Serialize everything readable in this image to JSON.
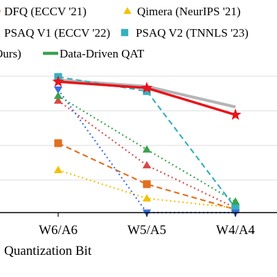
{
  "chart_data": {
    "type": "line",
    "categories": [
      "W6/A6",
      "W5/A5",
      "W4/A4"
    ],
    "xlabel": "Quantization Bit",
    "ylabel": "",
    "grid": true,
    "legend_placement": "top",
    "legend": {
      "items": [
        {
          "series_index": 0,
          "marker": "circle",
          "label": "DFQ (ECCV '21)"
        },
        {
          "series_index": 1,
          "marker": "triangle",
          "label": "Qimera (NeurIPS '21)"
        },
        {
          "series_index": 2,
          "marker": "triangle",
          "label": "PSAQ V1 (ECCV '22)"
        },
        {
          "series_index": 3,
          "marker": "square",
          "label": "PSAQ V2 (TNNLS '23)"
        },
        {
          "series_index": 4,
          "marker": "star",
          "label": "Ours)"
        },
        {
          "series_index": 5,
          "marker": "line",
          "label": "Data-Driven QAT"
        }
      ]
    },
    "series": [
      {
        "name": "DFQ (ECCV '21)",
        "color": "#e07020",
        "dash": "8,5",
        "marker": "square",
        "values": [
          44,
          18,
          2
        ]
      },
      {
        "name": "Qimera (NeurIPS '21)",
        "color": "#f2c200",
        "dash": "2,4",
        "marker": "triangle",
        "values": [
          27,
          9,
          3
        ]
      },
      {
        "name": "PSAQ V1 (ECCV '22)",
        "color": "#d84848",
        "dash": "2,4",
        "marker": "triangle",
        "values": [
          71,
          30,
          3
        ]
      },
      {
        "name": "PSAQ V2 (TNNLS '23)",
        "color": "#35b0c0",
        "dash": "8,5",
        "marker": "square",
        "values": [
          86,
          77,
          3
        ]
      },
      {
        "name": "",
        "color": "#3a6ee0",
        "dash": "2,4",
        "marker": "triangle-down",
        "values": [
          78,
          0,
          0
        ]
      },
      {
        "name": "",
        "color": "#3aa24e",
        "dash": "2,4",
        "marker": "triangle",
        "values": [
          74,
          40,
          7
        ]
      },
      {
        "name": "Ours)",
        "color": "#e8141c",
        "dash": "",
        "marker": "star",
        "values": [
          83,
          79,
          62
        ]
      },
      {
        "name": "Data-Driven QAT",
        "color": "#b5b5b5",
        "dash": "",
        "marker": "none",
        "values": [
          84,
          80,
          67
        ]
      }
    ]
  }
}
